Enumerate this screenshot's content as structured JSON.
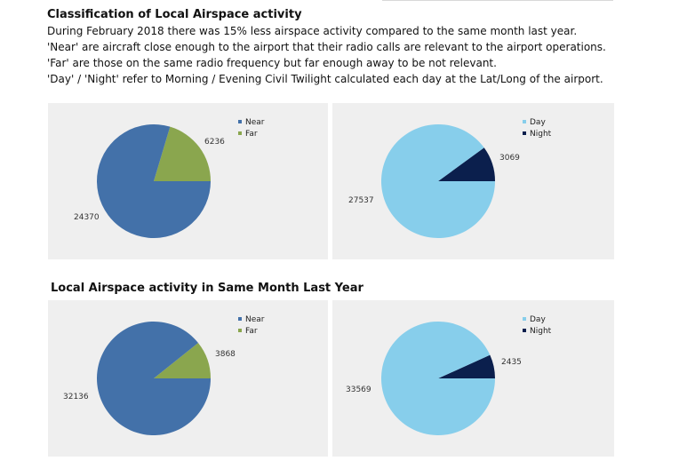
{
  "heading": "Classification of Local Airspace activity",
  "description": [
    "During February 2018 there was 15% less airspace activity compared to the same month last year.",
    "'Near' are aircraft close enough to the airport that their radio calls are relevant to the airport operations.",
    "'Far' are those on the same radio frequency but far enough away to be not relevant.",
    "'Day' / 'Night' refer to Morning / Evening Civil Twilight calculated each day at the Lat/Long of the airport."
  ],
  "subheading": "Local Airspace activity in Same Month Last Year",
  "chart_data": [
    {
      "type": "pie",
      "categories": [
        "Near",
        "Far"
      ],
      "values": [
        24370,
        6236
      ],
      "colors": [
        "#4371a9",
        "#8aa64e"
      ],
      "legend": "top-right"
    },
    {
      "type": "pie",
      "categories": [
        "Day",
        "Night"
      ],
      "values": [
        27537,
        3069
      ],
      "colors": [
        "#87ceeb",
        "#0b1f4d"
      ],
      "legend": "top-right"
    },
    {
      "type": "pie",
      "categories": [
        "Near",
        "Far"
      ],
      "values": [
        32136,
        3868
      ],
      "colors": [
        "#4371a9",
        "#8aa64e"
      ],
      "legend": "top-right"
    },
    {
      "type": "pie",
      "categories": [
        "Day",
        "Night"
      ],
      "values": [
        33569,
        2435
      ],
      "colors": [
        "#87ceeb",
        "#0b1f4d"
      ],
      "legend": "top-right"
    }
  ]
}
